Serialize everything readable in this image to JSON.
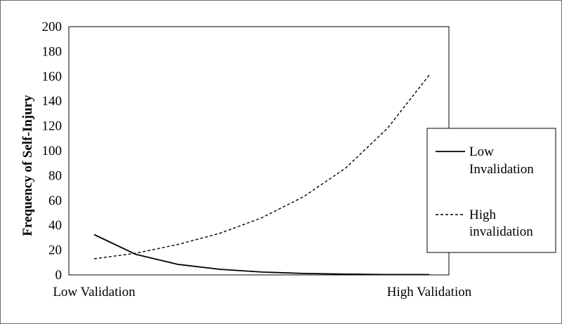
{
  "chart_data": {
    "type": "line",
    "ylabel": "Frequency of Self-Injury",
    "ylim": [
      0,
      200
    ],
    "yticks": [
      0,
      20,
      40,
      60,
      80,
      100,
      120,
      140,
      160,
      180,
      200
    ],
    "x_endpoint_labels": [
      "Low Validation",
      "High Validation"
    ],
    "x": [
      1,
      2,
      3,
      4,
      5,
      6,
      7,
      8,
      9
    ],
    "series": [
      {
        "name": "Low Invalidation",
        "name_lines": [
          "Low",
          "Invalidation"
        ],
        "style": "solid",
        "values": [
          32.5,
          16.5,
          8.5,
          4.5,
          2.3,
          1.2,
          0.6,
          0.3,
          0.1
        ]
      },
      {
        "name": "High invalidation",
        "name_lines": [
          "High",
          "invalidation"
        ],
        "style": "dashed",
        "values": [
          13,
          17.5,
          24.5,
          33.5,
          46,
          63,
          86,
          118,
          161
        ]
      }
    ],
    "grid": false,
    "legend": "right"
  },
  "colors": {
    "line": "#000000",
    "frame": "#6e6e6e",
    "plot_border": "#000000"
  }
}
